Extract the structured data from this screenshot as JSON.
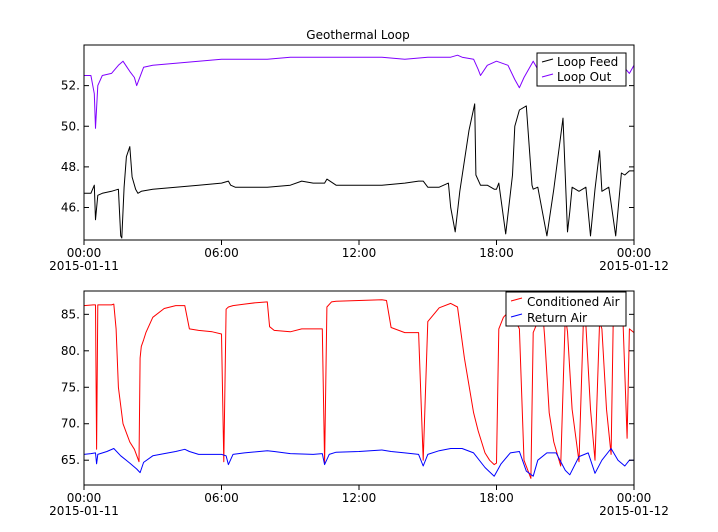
{
  "chart_data": [
    {
      "type": "line",
      "title": "Geothermal Loop",
      "xlabel": "",
      "ylabel": "",
      "x_unit": "hours since 2015-01-11 00:00",
      "xlim": [
        0,
        24
      ],
      "ylim": [
        44.4,
        54.0
      ],
      "x_ticks": [
        {
          "x": 0,
          "label": "00:00",
          "sublabel": "2015-01-11"
        },
        {
          "x": 6,
          "label": "06:00",
          "sublabel": ""
        },
        {
          "x": 12,
          "label": "12:00",
          "sublabel": ""
        },
        {
          "x": 18,
          "label": "18:00",
          "sublabel": ""
        },
        {
          "x": 24,
          "label": "00:00",
          "sublabel": "2015-01-12"
        }
      ],
      "y_ticks": [
        {
          "y": 46,
          "label": "46."
        },
        {
          "y": 48,
          "label": "48."
        },
        {
          "y": 50,
          "label": "50."
        },
        {
          "y": 52,
          "label": "52."
        }
      ],
      "legend": "top-right",
      "series": [
        {
          "name": "Loop Feed",
          "color": "#000000",
          "x": [
            0.0,
            0.3,
            0.45,
            0.5,
            0.6,
            0.8,
            1.2,
            1.5,
            1.6,
            1.65,
            1.75,
            1.85,
            2.0,
            2.1,
            2.25,
            2.35,
            2.5,
            3.0,
            4.0,
            5.0,
            6.0,
            6.3,
            6.4,
            6.6,
            7.0,
            8.0,
            9.0,
            9.5,
            10.0,
            10.5,
            10.6,
            11.0,
            12.0,
            13.0,
            14.0,
            14.6,
            14.8,
            15.0,
            15.5,
            15.9,
            16.0,
            16.2,
            16.4,
            16.8,
            17.05,
            17.1,
            17.3,
            17.6,
            17.9,
            18.0,
            18.1,
            18.4,
            18.7,
            18.8,
            19.0,
            19.3,
            19.55,
            19.6,
            19.8,
            20.2,
            20.5,
            20.9,
            21.1,
            21.2,
            21.3,
            21.6,
            21.9,
            22.1,
            22.3,
            22.5,
            22.6,
            22.9,
            23.2,
            23.45,
            23.6,
            23.8,
            24.0
          ],
          "y": [
            46.7,
            46.7,
            47.1,
            45.4,
            46.6,
            46.7,
            46.8,
            46.9,
            44.6,
            44.5,
            47.0,
            48.5,
            49.0,
            47.5,
            46.9,
            46.7,
            46.8,
            46.9,
            47.0,
            47.1,
            47.2,
            47.3,
            47.1,
            47.0,
            47.0,
            47.0,
            47.1,
            47.3,
            47.2,
            47.2,
            47.4,
            47.1,
            47.1,
            47.1,
            47.2,
            47.3,
            47.3,
            47.0,
            47.0,
            47.2,
            46.0,
            44.8,
            46.8,
            49.8,
            51.1,
            47.6,
            47.1,
            47.1,
            46.9,
            46.9,
            47.2,
            44.7,
            47.6,
            50.0,
            50.8,
            51.0,
            47.1,
            46.9,
            47.0,
            44.6,
            46.9,
            50.4,
            44.8,
            45.8,
            47.0,
            46.8,
            47.0,
            44.6,
            46.9,
            48.8,
            46.8,
            47.0,
            44.6,
            47.7,
            47.6,
            47.8,
            47.8
          ]
        },
        {
          "name": "Loop Out",
          "color": "#8000ff",
          "x": [
            0.0,
            0.3,
            0.45,
            0.5,
            0.6,
            0.8,
            1.2,
            1.5,
            1.7,
            2.0,
            2.2,
            2.3,
            2.6,
            3.0,
            4.0,
            5.0,
            6.0,
            7.0,
            8.0,
            9.0,
            10.0,
            11.0,
            12.0,
            13.0,
            14.0,
            15.0,
            16.0,
            16.3,
            16.5,
            17.0,
            17.2,
            17.3,
            17.6,
            18.0,
            18.5,
            18.8,
            19.0,
            19.2,
            19.6,
            19.8,
            20.0,
            20.5,
            21.0,
            21.5,
            22.0,
            22.5,
            23.0,
            23.5,
            23.8,
            24.0
          ],
          "y": [
            52.5,
            52.5,
            51.6,
            49.9,
            52.0,
            52.5,
            52.6,
            53.0,
            53.2,
            52.7,
            52.4,
            52.0,
            52.9,
            53.0,
            53.1,
            53.2,
            53.3,
            53.3,
            53.3,
            53.4,
            53.4,
            53.4,
            53.4,
            53.4,
            53.3,
            53.4,
            53.4,
            53.5,
            53.4,
            53.3,
            52.8,
            52.5,
            53.0,
            53.2,
            53.0,
            52.3,
            51.9,
            52.4,
            53.2,
            52.8,
            53.2,
            53.4,
            53.3,
            53.3,
            53.2,
            53.0,
            53.2,
            53.0,
            52.6,
            53.0
          ]
        }
      ]
    },
    {
      "type": "line",
      "title": "",
      "xlabel": "",
      "ylabel": "",
      "x_unit": "hours since 2015-01-11 00:00",
      "xlim": [
        0,
        24
      ],
      "ylim": [
        61.6,
        88.2
      ],
      "x_ticks": [
        {
          "x": 0,
          "label": "00:00",
          "sublabel": "2015-01-11"
        },
        {
          "x": 6,
          "label": "06:00",
          "sublabel": ""
        },
        {
          "x": 12,
          "label": "12:00",
          "sublabel": ""
        },
        {
          "x": 18,
          "label": "18:00",
          "sublabel": ""
        },
        {
          "x": 24,
          "label": "00:00",
          "sublabel": "2015-01-12"
        }
      ],
      "y_ticks": [
        {
          "y": 65,
          "label": "65."
        },
        {
          "y": 70,
          "label": "70."
        },
        {
          "y": 75,
          "label": "75."
        },
        {
          "y": 80,
          "label": "80."
        },
        {
          "y": 85,
          "label": "85."
        }
      ],
      "legend": "top-right",
      "series": [
        {
          "name": "Conditioned Air",
          "color": "#ff0000",
          "x": [
            0.0,
            0.4,
            0.5,
            0.55,
            0.6,
            1.2,
            1.3,
            1.4,
            1.5,
            1.7,
            2.0,
            2.2,
            2.4,
            2.45,
            2.5,
            2.6,
            2.7,
            3.0,
            3.5,
            4.0,
            4.4,
            4.6,
            5.0,
            5.6,
            6.0,
            6.1,
            6.2,
            6.3,
            6.5,
            7.0,
            7.5,
            8.0,
            8.1,
            8.3,
            9.0,
            9.5,
            10.0,
            10.4,
            10.5,
            10.6,
            10.8,
            11.0,
            12.0,
            13.0,
            13.2,
            13.4,
            14.0,
            14.5,
            14.6,
            14.8,
            15.0,
            15.5,
            16.0,
            16.3,
            16.6,
            17.0,
            17.2,
            17.5,
            17.7,
            17.9,
            18.0,
            18.1,
            18.3,
            18.6,
            19.0,
            19.2,
            19.5,
            19.6,
            19.8,
            20.0,
            20.1,
            20.3,
            20.5,
            20.8,
            21.0,
            21.1,
            21.3,
            21.6,
            21.8,
            21.9,
            22.1,
            22.3,
            22.5,
            22.6,
            22.8,
            23.0,
            23.1,
            23.3,
            23.5,
            23.7,
            23.8,
            24.0
          ],
          "y": [
            86.2,
            86.3,
            86.3,
            66.5,
            86.3,
            86.3,
            86.4,
            83.0,
            75.0,
            70.0,
            67.5,
            66.5,
            64.8,
            79.0,
            80.6,
            81.5,
            82.5,
            84.6,
            85.8,
            86.2,
            86.2,
            83.0,
            82.8,
            82.6,
            82.3,
            64.8,
            85.7,
            86.0,
            86.2,
            86.4,
            86.6,
            86.7,
            83.3,
            82.8,
            82.6,
            83.0,
            83.0,
            83.0,
            64.6,
            86.0,
            86.7,
            86.8,
            86.9,
            87.0,
            86.9,
            83.2,
            82.5,
            82.5,
            82.5,
            65.0,
            84.0,
            85.9,
            86.5,
            86.0,
            79.0,
            71.5,
            69.0,
            66.0,
            65.0,
            64.4,
            64.6,
            83.0,
            84.6,
            85.6,
            83.0,
            65.0,
            62.5,
            82.5,
            84.0,
            86.0,
            82.0,
            71.5,
            67.5,
            64.2,
            84.8,
            82.6,
            72.0,
            64.8,
            85.0,
            83.5,
            72.0,
            65.0,
            84.0,
            83.0,
            72.0,
            65.8,
            85.6,
            86.0,
            86.0,
            68.0,
            83.0,
            82.5
          ]
        },
        {
          "name": "Return Air",
          "color": "#0000ff",
          "x": [
            0.0,
            0.3,
            0.5,
            0.55,
            0.6,
            1.0,
            1.3,
            1.6,
            2.0,
            2.3,
            2.45,
            2.6,
            3.0,
            3.5,
            4.0,
            4.4,
            4.6,
            5.0,
            6.0,
            6.2,
            6.3,
            6.5,
            7.0,
            8.0,
            8.3,
            9.0,
            10.0,
            10.4,
            10.5,
            10.7,
            11.0,
            12.0,
            13.0,
            13.4,
            14.0,
            14.6,
            14.8,
            15.0,
            15.5,
            16.0,
            16.5,
            17.0,
            17.5,
            17.9,
            18.2,
            18.6,
            19.0,
            19.3,
            19.6,
            19.8,
            20.2,
            20.6,
            21.0,
            21.2,
            21.6,
            22.0,
            22.3,
            22.6,
            23.0,
            23.3,
            23.6,
            23.8,
            24.0
          ],
          "y": [
            65.8,
            65.9,
            66.0,
            64.5,
            65.8,
            66.2,
            66.6,
            65.6,
            64.6,
            63.8,
            63.3,
            64.7,
            65.6,
            65.9,
            66.2,
            66.5,
            66.2,
            65.8,
            65.8,
            65.6,
            64.4,
            65.8,
            66.0,
            66.3,
            66.2,
            65.9,
            65.8,
            65.9,
            64.4,
            65.8,
            66.1,
            66.2,
            66.4,
            66.2,
            66.0,
            65.8,
            64.2,
            65.8,
            66.3,
            66.6,
            66.6,
            66.0,
            64.0,
            62.8,
            64.5,
            66.0,
            66.2,
            63.5,
            62.8,
            65.0,
            66.0,
            66.0,
            63.6,
            63.0,
            65.5,
            66.0,
            63.2,
            65.0,
            66.6,
            65.0,
            64.2,
            65.0,
            65.0
          ]
        }
      ]
    }
  ]
}
